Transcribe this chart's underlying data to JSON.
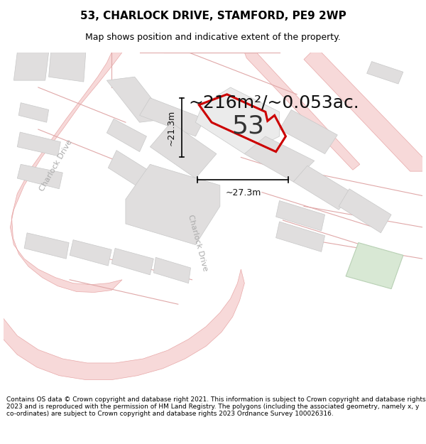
{
  "title": "53, CHARLOCK DRIVE, STAMFORD, PE9 2WP",
  "subtitle": "Map shows position and indicative extent of the property.",
  "footer": "Contains OS data © Crown copyright and database right 2021. This information is subject to Crown copyright and database rights 2023 and is reproduced with the permission of HM Land Registry. The polygons (including the associated geometry, namely x, y co-ordinates) are subject to Crown copyright and database rights 2023 Ordnance Survey 100026316.",
  "area_label": "~216m²/~0.053ac.",
  "number_label": "53",
  "dim_width_label": "~27.3m",
  "dim_height_label": "~21.3m",
  "road_label_left": "Charlock Drive",
  "road_label_bottom": "Charlock Drive",
  "map_bg": "#f5f4f2",
  "building_fill": "#e0dede",
  "building_stroke": "#c8c8c8",
  "road_fill": "#f7d9d9",
  "road_line": "#e8a8a8",
  "thin_line": "#e0a8a8",
  "highlight_color": "#cc0000",
  "green_fill": "#d8e8d4",
  "green_stroke": "#b8d0b4",
  "white_fill": "#ffffff",
  "fig_width": 6.0,
  "fig_height": 6.25,
  "title_fontsize": 11,
  "subtitle_fontsize": 9,
  "footer_fontsize": 6.5,
  "area_fontsize": 18,
  "number_fontsize": 26,
  "dim_fontsize": 9,
  "road_label_fontsize": 8
}
